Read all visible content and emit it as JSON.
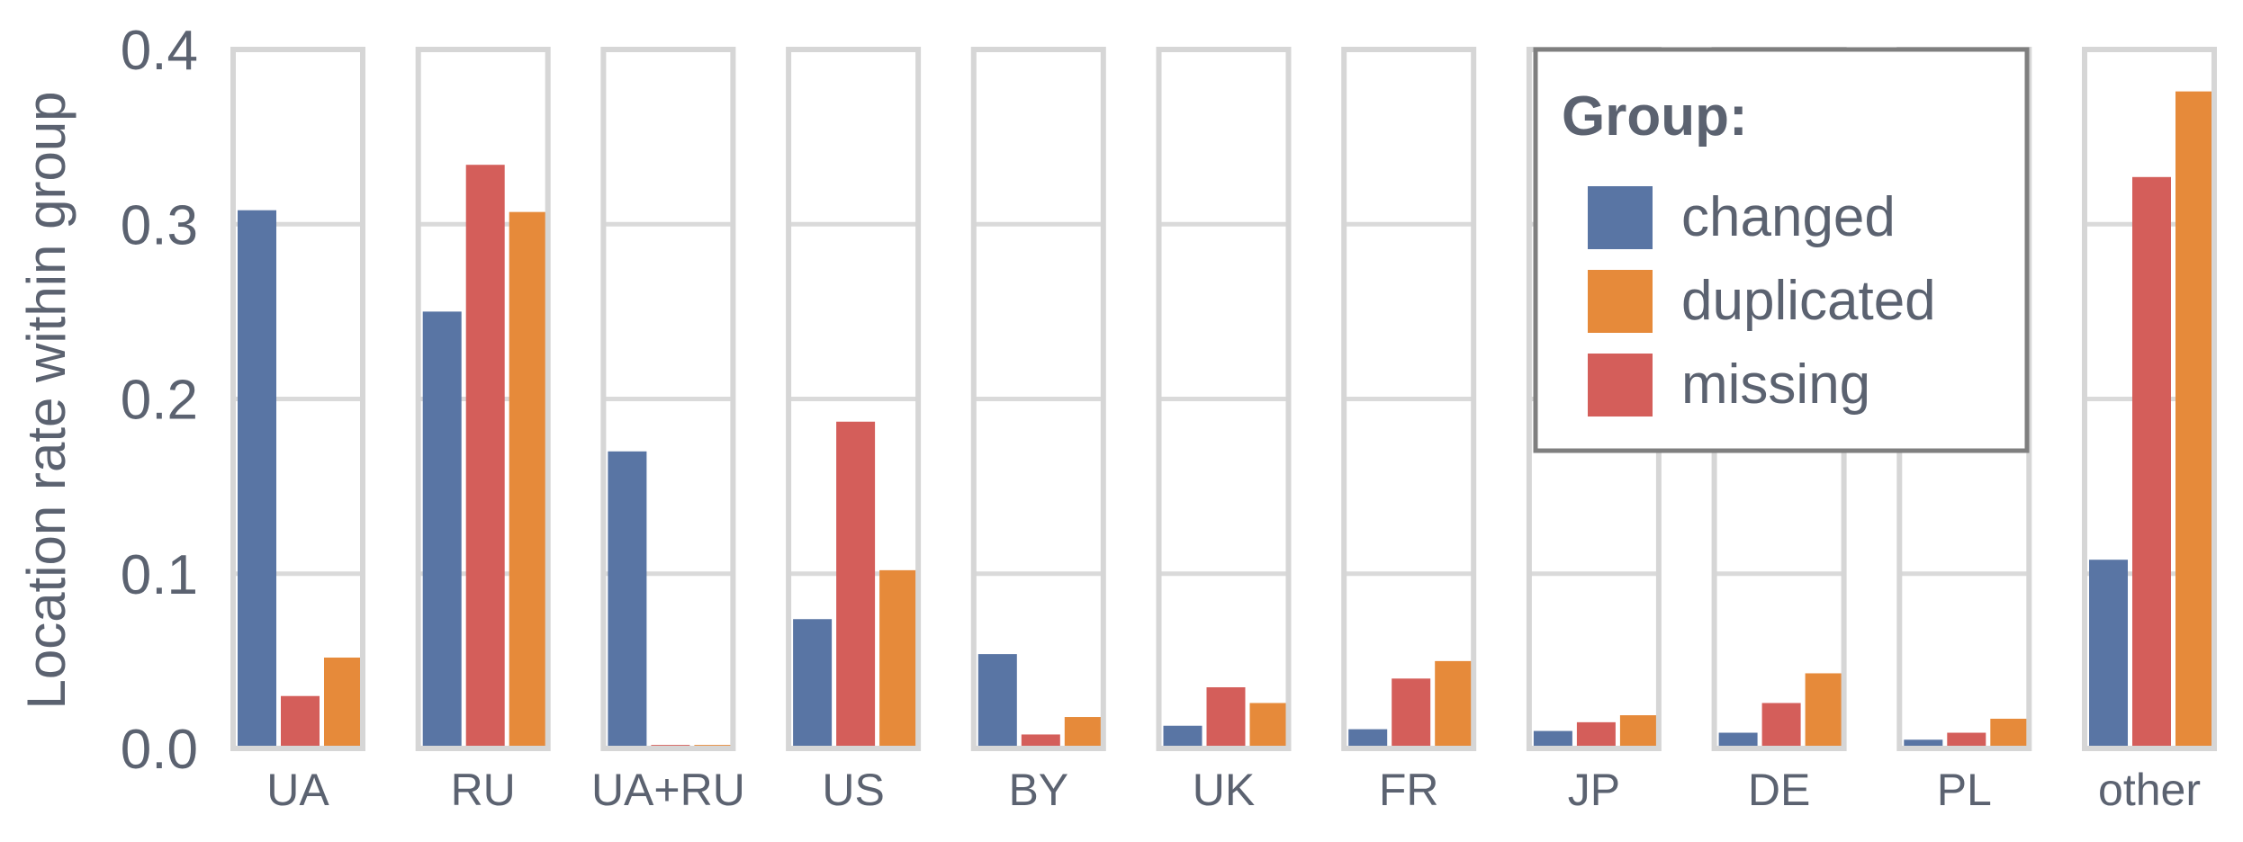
{
  "chart_data": {
    "type": "bar",
    "layout": "faceted-by-category",
    "ylabel": "Location rate within group",
    "ylim": [
      0.0,
      0.4
    ],
    "yticks": [
      "0.0",
      "0.1",
      "0.2",
      "0.3",
      "0.4"
    ],
    "yticks_values": [
      0.0,
      0.1,
      0.2,
      0.3,
      0.4
    ],
    "grid": true,
    "categories": [
      "UA",
      "RU",
      "UA+RU",
      "US",
      "BY",
      "UK",
      "FR",
      "JP",
      "DE",
      "PL",
      "other"
    ],
    "series_order_in_facet": [
      "changed",
      "missing",
      "duplicated"
    ],
    "series": [
      {
        "name": "changed",
        "color": "#5975a4",
        "values": [
          0.308,
          0.25,
          0.17,
          0.074,
          0.054,
          0.013,
          0.011,
          0.01,
          0.009,
          0.005,
          0.108
        ]
      },
      {
        "name": "duplicated",
        "color": "#e68a3a",
        "values": [
          0.052,
          0.307,
          0.002,
          0.102,
          0.018,
          0.026,
          0.05,
          0.019,
          0.043,
          0.017,
          0.376
        ]
      },
      {
        "name": "missing",
        "color": "#d45e5a",
        "values": [
          0.03,
          0.334,
          0.002,
          0.187,
          0.008,
          0.035,
          0.04,
          0.015,
          0.026,
          0.009,
          0.327
        ]
      }
    ],
    "legend": {
      "title": "Group:",
      "placement": "top-right",
      "entries": [
        "changed",
        "duplicated",
        "missing"
      ]
    }
  }
}
